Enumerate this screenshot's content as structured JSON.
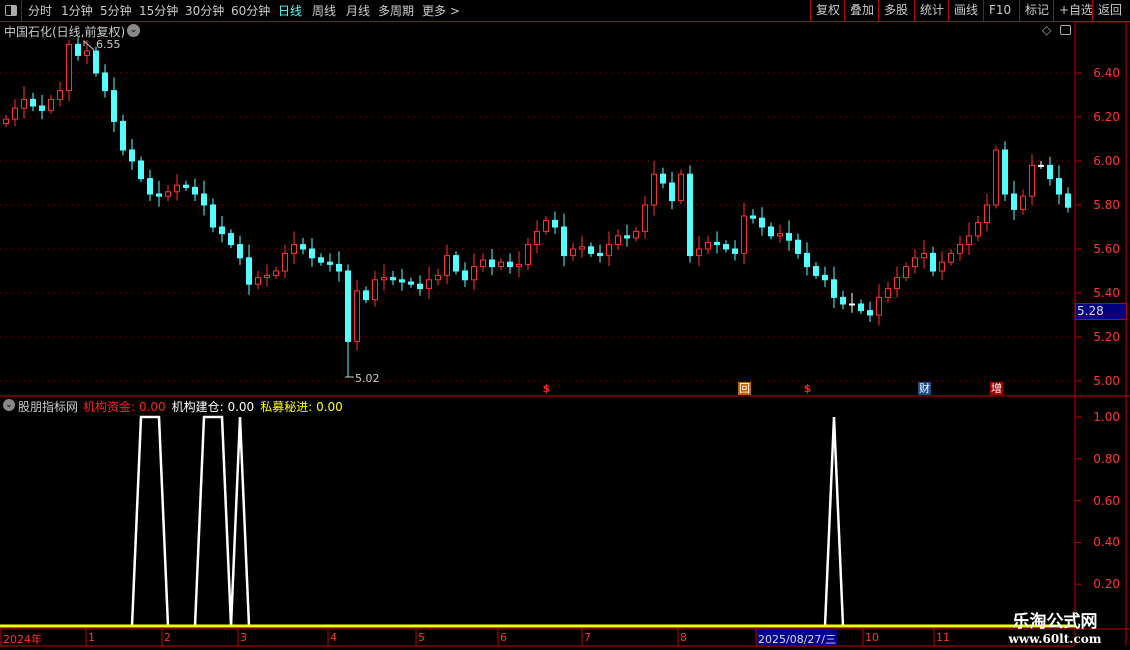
{
  "toolbar": {
    "periods": [
      "分时",
      "1分钟",
      "5分钟",
      "15分钟",
      "30分钟",
      "60分钟",
      "日线",
      "周线",
      "月线",
      "多周期",
      "更多 >"
    ],
    "active": "日线",
    "right_buttons": [
      "复权",
      "叠加",
      "多股",
      "统计",
      "画线",
      "F10",
      "标记",
      "+自选",
      "返回"
    ]
  },
  "main_title": "中国石化(日线,前复权)",
  "indicator_title": "股朋指标网",
  "indicator_values": [
    {
      "label": "机构资金:",
      "value": "0.00",
      "color": "#ff2020"
    },
    {
      "label": "机构建仓:",
      "value": "0.00",
      "color": "#ffffff"
    },
    {
      "label": "私募秘进:",
      "value": "0.00",
      "color": "#ffff00"
    }
  ],
  "cursor_price": "5.28",
  "watermark": {
    "title": "乐淘公式网",
    "url": "www.60lt.com"
  },
  "colors": {
    "up": "#ff3030",
    "down": "#54ffff",
    "grid": "#8b0000",
    "axis": "#c00000",
    "indicator_line": "#ffffff",
    "zero_line": "#ffff00"
  },
  "chart_data": [
    {
      "type": "candlestick",
      "title": "中国石化(日线,前复权)",
      "ylim": [
        4.95,
        6.58
      ],
      "yticks": [
        "6.40",
        "6.20",
        "6.00",
        "5.80",
        "5.60",
        "5.40",
        "5.20",
        "5.00"
      ],
      "xticks": [
        "2024年",
        "1",
        "2",
        "3",
        "4",
        "5",
        "6",
        "7",
        "8",
        "2025/08/27/三",
        "10",
        "11"
      ],
      "max_label": "6.55",
      "min_label": "5.02",
      "close": [
        6.19,
        6.24,
        6.28,
        6.25,
        6.23,
        6.28,
        6.32,
        6.53,
        6.48,
        6.5,
        6.4,
        6.32,
        6.18,
        6.05,
        6.0,
        5.92,
        5.85,
        5.84,
        5.86,
        5.89,
        5.88,
        5.85,
        5.8,
        5.7,
        5.67,
        5.62,
        5.56,
        5.44,
        5.47,
        5.48,
        5.5,
        5.58,
        5.62,
        5.6,
        5.56,
        5.54,
        5.53,
        5.5,
        5.18,
        5.41,
        5.37,
        5.46,
        5.47,
        5.46,
        5.45,
        5.44,
        5.42,
        5.46,
        5.48,
        5.57,
        5.5,
        5.46,
        5.52,
        5.55,
        5.52,
        5.54,
        5.52,
        5.53,
        5.62,
        5.68,
        5.73,
        5.7,
        5.57,
        5.6,
        5.61,
        5.58,
        5.57,
        5.62,
        5.66,
        5.65,
        5.68,
        5.8,
        5.94,
        5.9,
        5.82,
        5.94,
        5.57,
        5.6,
        5.63,
        5.62,
        5.6,
        5.58,
        5.75,
        5.74,
        5.7,
        5.66,
        5.67,
        5.64,
        5.58,
        5.52,
        5.48,
        5.46,
        5.38,
        5.35,
        5.35,
        5.32,
        5.3,
        5.38,
        5.42,
        5.47,
        5.52,
        5.56,
        5.58,
        5.5,
        5.54,
        5.58,
        5.62,
        5.66,
        5.72,
        5.8,
        6.05,
        5.85,
        5.78,
        5.84,
        5.98,
        5.98,
        5.92,
        5.85,
        5.79
      ],
      "events": [
        {
          "index": 60,
          "label": "$",
          "color": "#ff2020"
        },
        {
          "index": 82,
          "label": "回",
          "color": "#c06000"
        },
        {
          "index": 89,
          "label": "$",
          "color": "#ff2020"
        },
        {
          "index": 102,
          "label": "财",
          "color": "#1a4a8a"
        },
        {
          "index": 110,
          "label": "增",
          "color": "#a00000"
        }
      ]
    },
    {
      "type": "line",
      "title": "股朋指标网",
      "ylim": [
        0,
        1.05
      ],
      "yticks": [
        "1.00",
        "0.80",
        "0.60",
        "0.40",
        "0.20"
      ],
      "series": [
        {
          "name": "机构资金",
          "color": "#ffffff",
          "ones": [
            15,
            16,
            17,
            22,
            23,
            24,
            26,
            92
          ]
        },
        {
          "name": "私募秘进",
          "color": "#ffff00",
          "constant": 0
        }
      ]
    }
  ]
}
